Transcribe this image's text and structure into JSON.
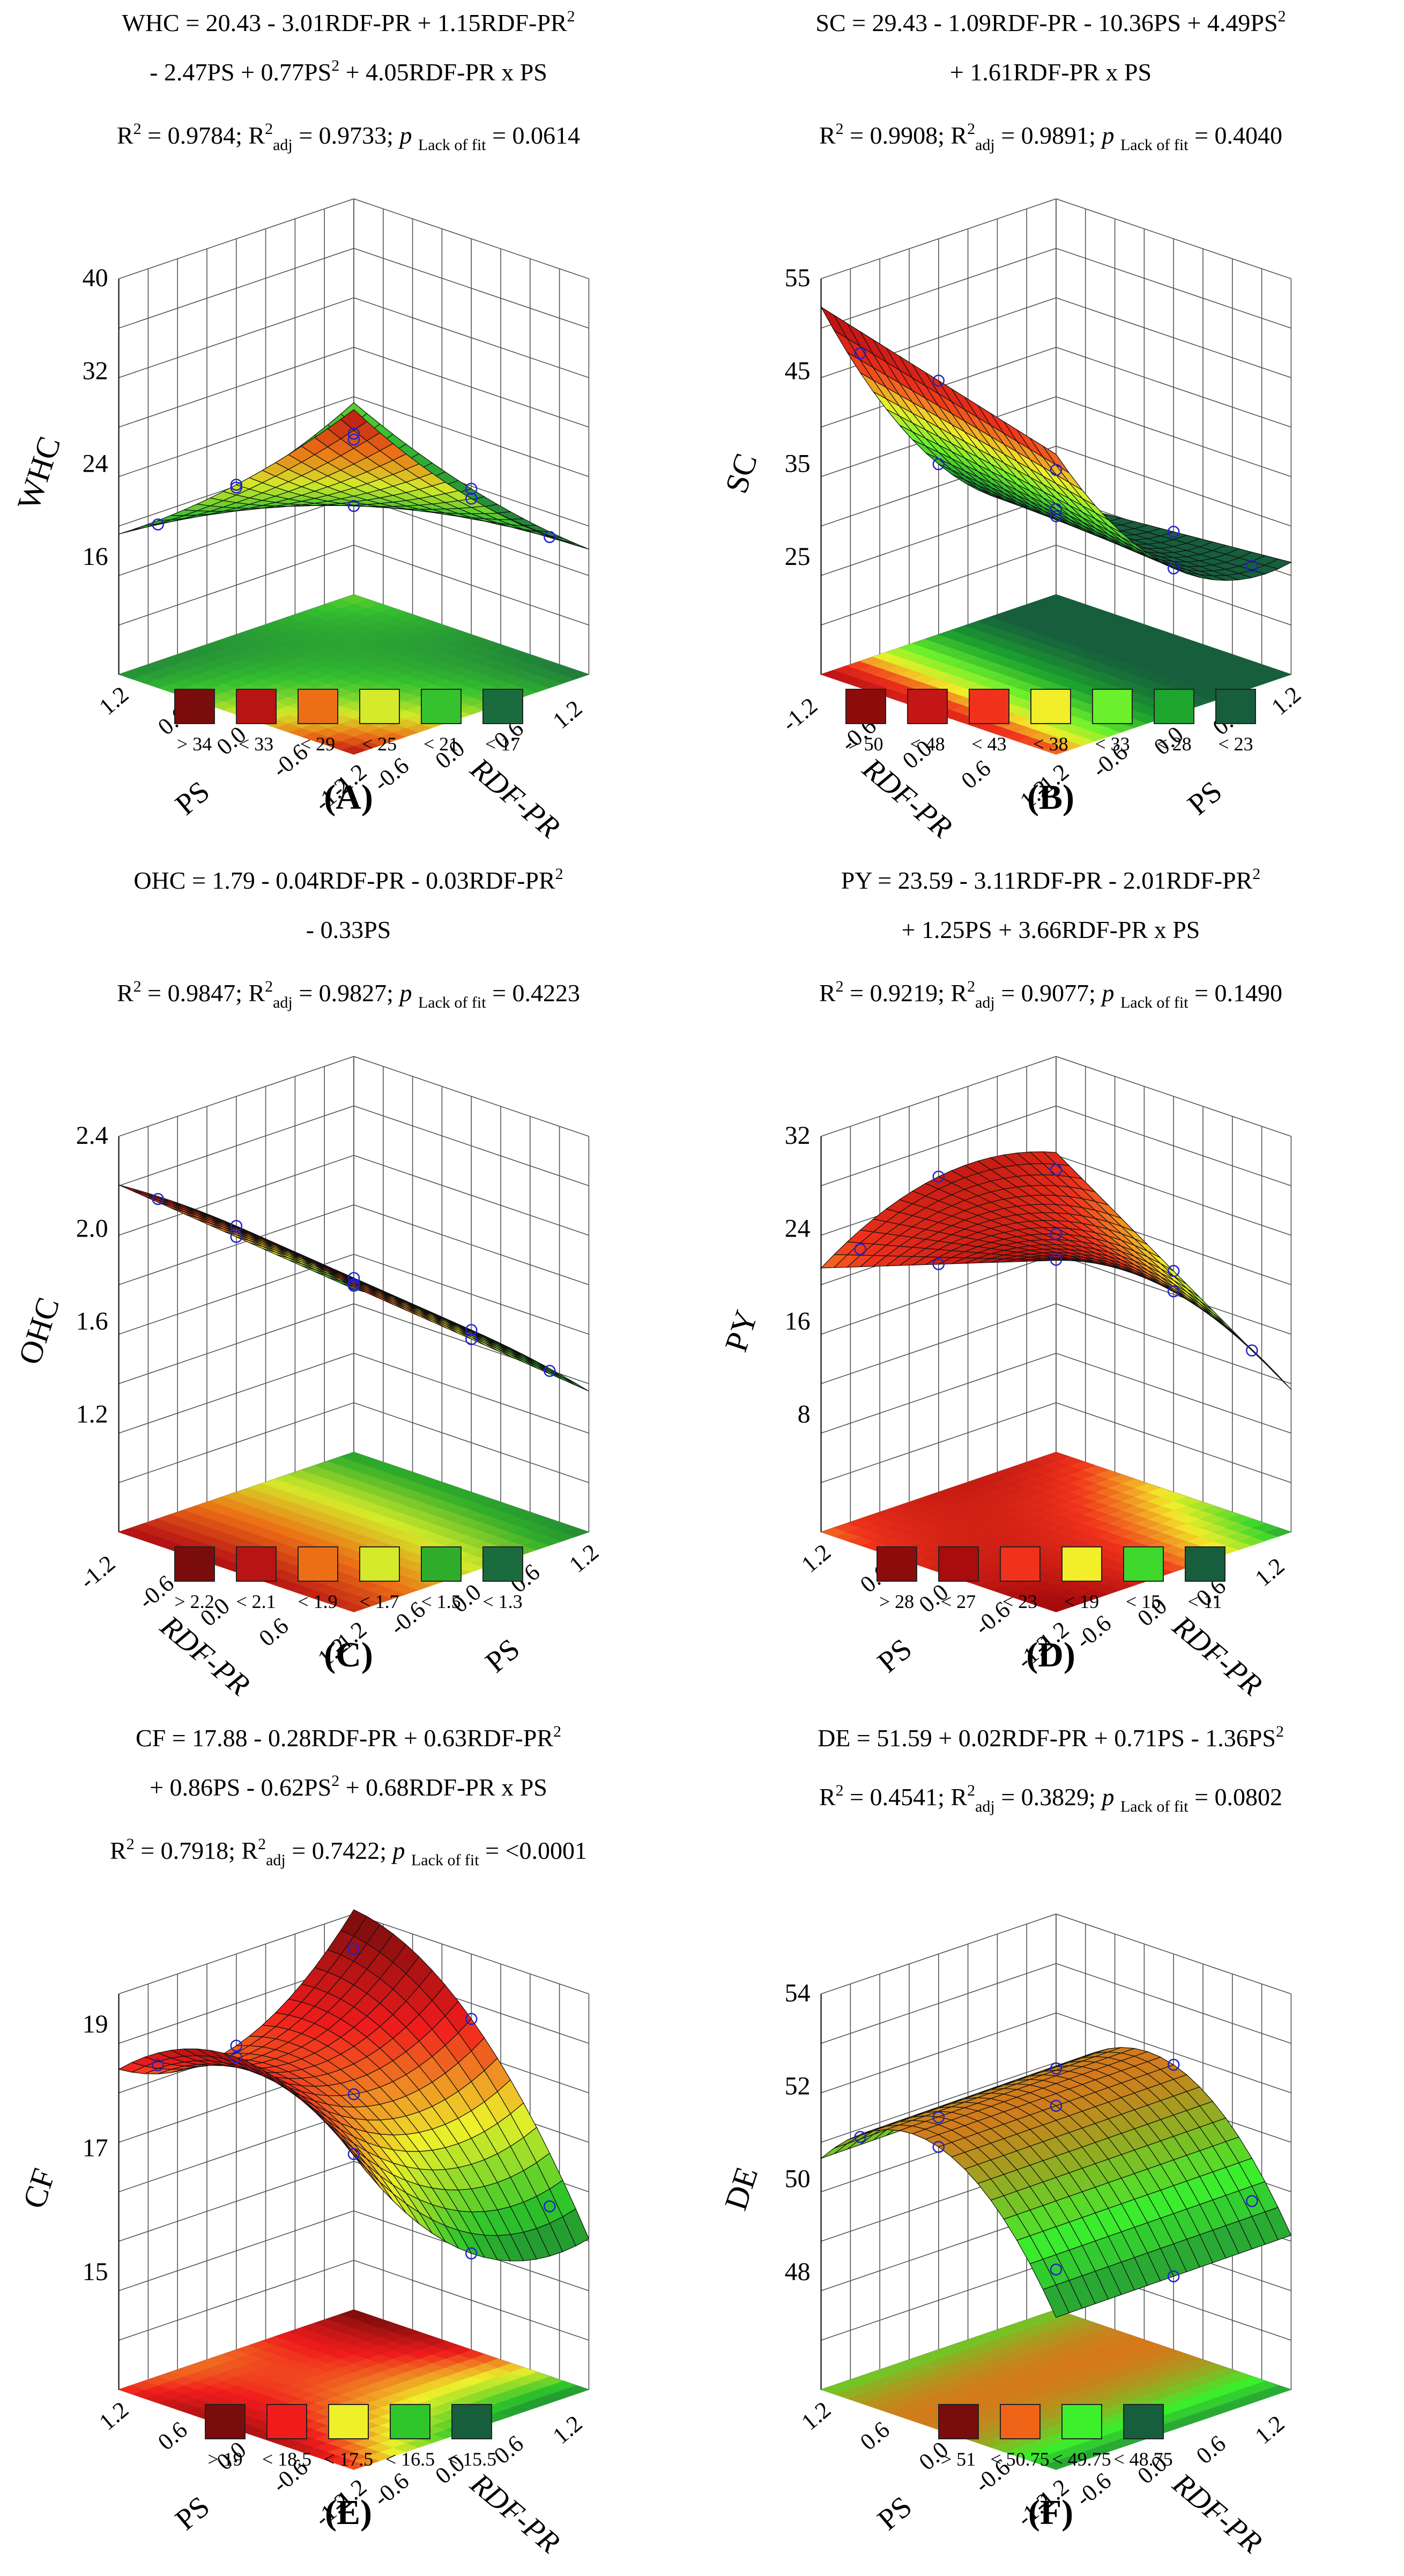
{
  "figure": {
    "panels": [
      {
        "label": "(A)",
        "response": "WHC",
        "equation_lines": [
          "WHC = 20.43 - 3.01RDF-PR + 1.15RDF-PR{2}",
          "- 2.47PS + 0.77PS{2} + 4.05RDF-PR x PS"
        ],
        "stats": {
          "r2": "0.9784",
          "r2adj": "0.9733",
          "p_lack_of_fit": "0.0614"
        },
        "z_ticks": [
          "16",
          "24",
          "32",
          "40"
        ],
        "legend": [
          {
            "label": "> 34",
            "color": "#7b0c0c"
          },
          {
            "label": "< 33",
            "color": "#b81414"
          },
          {
            "label": "< 29",
            "color": "#ec6f16"
          },
          {
            "label": "< 25",
            "color": "#d4ea2a"
          },
          {
            "label": "< 21",
            "color": "#35c22e"
          },
          {
            "label": "< 17",
            "color": "#1a6b3e"
          }
        ]
      },
      {
        "label": "(B)",
        "response": "SC",
        "equation_lines": [
          "SC = 29.43 - 1.09RDF-PR - 10.36PS + 4.49PS{2}",
          "+ 1.61RDF-PR x PS"
        ],
        "stats": {
          "r2": "0.9908",
          "r2adj": "0.9891",
          "p_lack_of_fit": "0.4040"
        },
        "z_ticks": [
          "25",
          "35",
          "45",
          "55"
        ],
        "legend": [
          {
            "label": "> 50",
            "color": "#8c0c0c"
          },
          {
            "label": "< 48",
            "color": "#c41616"
          },
          {
            "label": "< 43",
            "color": "#f0321c"
          },
          {
            "label": "< 38",
            "color": "#f2ee2a"
          },
          {
            "label": "< 33",
            "color": "#6cf02c"
          },
          {
            "label": "< 28",
            "color": "#1ea52e"
          },
          {
            "label": "< 23",
            "color": "#165e3c"
          }
        ]
      },
      {
        "label": "(C)",
        "response": "OHC",
        "equation_lines": [
          "OHC = 1.79 - 0.04RDF-PR - 0.03RDF-PR{2}",
          "- 0.33PS"
        ],
        "stats": {
          "r2": "0.9847",
          "r2adj": "0.9827",
          "p_lack_of_fit": "0.4223"
        },
        "z_ticks": [
          "1.2",
          "1.6",
          "2.0",
          "2.4"
        ],
        "legend": [
          {
            "label": "> 2.2",
            "color": "#7b0c0c"
          },
          {
            "label": "< 2.1",
            "color": "#b81414"
          },
          {
            "label": "< 1.9",
            "color": "#ec6f16"
          },
          {
            "label": "< 1.7",
            "color": "#d4ea2a"
          },
          {
            "label": "< 1.5",
            "color": "#2fad2a"
          },
          {
            "label": "< 1.3",
            "color": "#1a6b3e"
          }
        ]
      },
      {
        "label": "(D)",
        "response": "PY",
        "equation_lines": [
          "PY = 23.59 - 3.11RDF-PR - 2.01RDF-PR{2}",
          "+ 1.25PS + 3.66RDF-PR x PS"
        ],
        "stats": {
          "r2": "0.9219",
          "r2adj": "0.9077",
          "p_lack_of_fit": "0.1490"
        },
        "z_ticks": [
          "8",
          "16",
          "24",
          "32"
        ],
        "legend": [
          {
            "label": "> 28",
            "color": "#8c0c0c"
          },
          {
            "label": "< 27",
            "color": "#a80c0c"
          },
          {
            "label": "< 23",
            "color": "#f0321c"
          },
          {
            "label": "< 19",
            "color": "#f2ee2a"
          },
          {
            "label": "< 15",
            "color": "#3ed82c"
          },
          {
            "label": "< 11",
            "color": "#165e3c"
          }
        ]
      },
      {
        "label": "(E)",
        "response": "CF",
        "equation_lines": [
          "CF = 17.88 - 0.28RDF-PR + 0.63RDF-PR{2}",
          "+ 0.86PS - 0.62PS{2} + 0.68RDF-PR x PS"
        ],
        "stats": {
          "r2": "0.7918",
          "r2adj": "0.7422",
          "p_lack_of_fit": "<0.0001"
        },
        "z_ticks": [
          "15",
          "17",
          "19"
        ],
        "legend": [
          {
            "label": "> 19",
            "color": "#7b0c0c"
          },
          {
            "label": "< 18.5",
            "color": "#f01c1c"
          },
          {
            "label": "< 17.5",
            "color": "#eef02a"
          },
          {
            "label": "< 16.5",
            "color": "#2ec62a"
          },
          {
            "label": "< 15.5",
            "color": "#165e3c"
          }
        ]
      },
      {
        "label": "(F)",
        "response": "DE",
        "equation_lines": [
          "DE = 51.59 + 0.02RDF-PR + 0.71PS - 1.36PS{2}"
        ],
        "stats": {
          "r2": "0.4541",
          "r2adj": "0.3829",
          "p_lack_of_fit": "0.0802"
        },
        "z_ticks": [
          "48",
          "50",
          "52",
          "54"
        ],
        "legend": [
          {
            "label": "> 51",
            "color": "#7b0c0c"
          },
          {
            "label": "< 50.75",
            "color": "#f06418"
          },
          {
            "label": "< 49.75",
            "color": "#3cf02c"
          },
          {
            "label": "< 48.75",
            "color": "#165e3c"
          }
        ]
      }
    ],
    "axis_ticks": [
      "-1.2",
      "-0.6",
      "0.0",
      "0.6",
      "1.2"
    ],
    "x_axis_label": "RDF-PR",
    "y_axis_label": "PS",
    "stat_template": {
      "r2": "R",
      "adj": "adj",
      "p": "p",
      "lof": "Lack of fit"
    },
    "point_color": "#2222cc"
  },
  "chart_data": [
    {
      "type": "surface3d",
      "panel": "(A)",
      "response": "WHC",
      "x_name": "RDF-PR",
      "y_name": "PS",
      "x_range": [
        -1.2,
        1.2
      ],
      "y_range": [
        -1.2,
        1.2
      ],
      "zlim": [
        16,
        40
      ],
      "z_ticks": [
        16,
        24,
        32,
        40
      ],
      "coefficients": {
        "intercept": 20.43,
        "x": -3.01,
        "x2": 1.15,
        "y": -2.47,
        "y2": 0.77,
        "xy": 4.05
      },
      "legend": [
        "> 34",
        "< 33",
        "< 29",
        "< 25",
        "< 21",
        "< 17"
      ],
      "stats": {
        "R2": 0.9784,
        "R2_adj": 0.9733,
        "p_lack_of_fit": 0.0614
      }
    },
    {
      "type": "surface3d",
      "panel": "(B)",
      "response": "SC",
      "x_name": "RDF-PR",
      "y_name": "PS",
      "x_range": [
        -1.2,
        1.2
      ],
      "y_range": [
        -1.2,
        1.2
      ],
      "zlim": [
        25,
        55
      ],
      "z_ticks": [
        25,
        35,
        45,
        55
      ],
      "coefficients": {
        "intercept": 29.43,
        "x": -1.09,
        "x2": 0,
        "y": -10.36,
        "y2": 4.49,
        "xy": 1.61
      },
      "legend": [
        "> 50",
        "< 48",
        "< 43",
        "< 38",
        "< 33",
        "< 28",
        "< 23"
      ],
      "stats": {
        "R2": 0.9908,
        "R2_adj": 0.9891,
        "p_lack_of_fit": 0.404
      }
    },
    {
      "type": "surface3d",
      "panel": "(C)",
      "response": "OHC",
      "x_name": "RDF-PR",
      "y_name": "PS",
      "x_range": [
        -1.2,
        1.2
      ],
      "y_range": [
        -1.2,
        1.2
      ],
      "zlim": [
        1.2,
        2.4
      ],
      "z_ticks": [
        1.2,
        1.6,
        2.0,
        2.4
      ],
      "coefficients": {
        "intercept": 1.79,
        "x": -0.04,
        "x2": -0.03,
        "y": -0.33,
        "y2": 0,
        "xy": 0
      },
      "legend": [
        "> 2.2",
        "< 2.1",
        "< 1.9",
        "< 1.7",
        "< 1.5",
        "< 1.3"
      ],
      "stats": {
        "R2": 0.9847,
        "R2_adj": 0.9827,
        "p_lack_of_fit": 0.4223
      }
    },
    {
      "type": "surface3d",
      "panel": "(D)",
      "response": "PY",
      "x_name": "RDF-PR",
      "y_name": "PS",
      "x_range": [
        -1.2,
        1.2
      ],
      "y_range": [
        -1.2,
        1.2
      ],
      "zlim": [
        8,
        32
      ],
      "z_ticks": [
        8,
        16,
        24,
        32
      ],
      "coefficients": {
        "intercept": 23.59,
        "x": -3.11,
        "x2": -2.01,
        "y": 1.25,
        "y2": 0,
        "xy": 3.66
      },
      "legend": [
        "> 28",
        "< 27",
        "< 23",
        "< 19",
        "< 15",
        "< 11"
      ],
      "stats": {
        "R2": 0.9219,
        "R2_adj": 0.9077,
        "p_lack_of_fit": 0.149
      }
    },
    {
      "type": "surface3d",
      "panel": "(E)",
      "response": "CF",
      "x_name": "RDF-PR",
      "y_name": "PS",
      "x_range": [
        -1.2,
        1.2
      ],
      "y_range": [
        -1.2,
        1.2
      ],
      "zlim": [
        15,
        19.5
      ],
      "z_ticks": [
        15,
        17,
        19
      ],
      "coefficients": {
        "intercept": 17.88,
        "x": -0.28,
        "x2": 0.63,
        "y": 0.86,
        "y2": -0.62,
        "xy": 0.68
      },
      "legend": [
        "> 19",
        "< 18.5",
        "< 17.5",
        "< 16.5",
        "< 15.5"
      ],
      "stats": {
        "R2": 0.7918,
        "R2_adj": 0.7422,
        "p_lack_of_fit": "<0.0001"
      }
    },
    {
      "type": "surface3d",
      "panel": "(F)",
      "response": "DE",
      "x_name": "RDF-PR",
      "y_name": "PS",
      "x_range": [
        -1.2,
        1.2
      ],
      "y_range": [
        -1.2,
        1.2
      ],
      "zlim": [
        48,
        54
      ],
      "z_ticks": [
        48,
        50,
        52,
        54
      ],
      "coefficients": {
        "intercept": 51.59,
        "x": 0.02,
        "x2": 0,
        "y": 0.71,
        "y2": -1.36,
        "xy": 0
      },
      "legend": [
        "> 51",
        "< 50.75",
        "< 49.75",
        "< 48.75"
      ],
      "stats": {
        "R2": 0.4541,
        "R2_adj": 0.3829,
        "p_lack_of_fit": 0.0802
      }
    }
  ]
}
